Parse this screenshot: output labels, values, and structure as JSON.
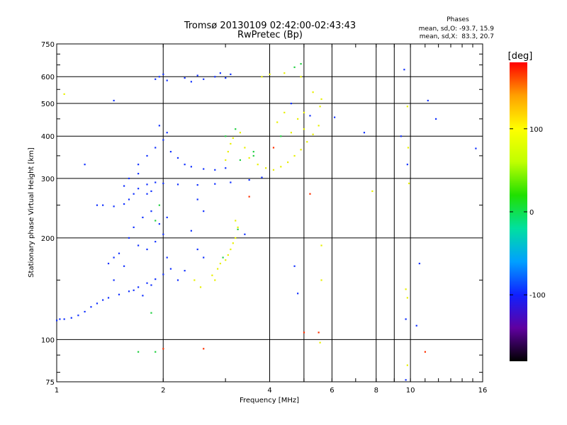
{
  "chart_data": {
    "type": "scatter",
    "title": "Tromsø 20130109 02:42:00-02:43:43",
    "subtitle": "RwPretec (Bp)",
    "xlabel": "Frequency [MHz]",
    "ylabel": "Stationary phase Virtual Height [km]",
    "x_scale": "log",
    "y_scale": "log",
    "xlim": [
      1,
      16
    ],
    "ylim": [
      75,
      750
    ],
    "x_ticks": [
      1,
      2,
      4,
      6,
      8,
      10,
      16
    ],
    "y_ticks": [
      75,
      100,
      200,
      300,
      400,
      500,
      600,
      750
    ],
    "x_grid": [
      2,
      4,
      5,
      6,
      8,
      9,
      10
    ],
    "y_grid": [
      100,
      200,
      300,
      400,
      500,
      600
    ],
    "grid": true,
    "phases": {
      "title": "Phases",
      "line_o": "mean, sd,O: -93.7, 15.9",
      "line_x": "mean, sd,X:  83.3, 20.7"
    },
    "colorbar": {
      "label": "[deg]",
      "range": [
        -180,
        180
      ],
      "ticks": [
        100,
        0,
        -100
      ],
      "palette": [
        "#000000",
        "#6000a0",
        "#1020ff",
        "#00a0ff",
        "#00e0a0",
        "#20e000",
        "#c0ff00",
        "#ffff00",
        "#ffa000",
        "#ff0000"
      ]
    },
    "series": [
      {
        "description": "O-mode echoes (blue, ~ -100 deg)",
        "color": "#1030ff",
        "points": [
          [
            1.0,
            114
          ],
          [
            1.02,
            115
          ],
          [
            1.05,
            115
          ],
          [
            1.1,
            116
          ],
          [
            1.15,
            118
          ],
          [
            1.2,
            121
          ],
          [
            1.25,
            125
          ],
          [
            1.3,
            128
          ],
          [
            1.35,
            131
          ],
          [
            1.4,
            133
          ],
          [
            1.5,
            136
          ],
          [
            1.6,
            139
          ],
          [
            1.7,
            143
          ],
          [
            1.8,
            147
          ],
          [
            1.9,
            151
          ],
          [
            2.0,
            156
          ],
          [
            2.1,
            162
          ],
          [
            1.4,
            168
          ],
          [
            1.45,
            175
          ],
          [
            1.3,
            250
          ],
          [
            1.35,
            250
          ],
          [
            1.45,
            248
          ],
          [
            1.55,
            252
          ],
          [
            1.6,
            260
          ],
          [
            1.65,
            270
          ],
          [
            1.7,
            280
          ],
          [
            1.8,
            288
          ],
          [
            1.9,
            292
          ],
          [
            2.0,
            290
          ],
          [
            2.2,
            288
          ],
          [
            2.5,
            287
          ],
          [
            2.8,
            289
          ],
          [
            3.1,
            292
          ],
          [
            3.5,
            297
          ],
          [
            3.8,
            302
          ],
          [
            1.6,
            200
          ],
          [
            1.7,
            190
          ],
          [
            1.8,
            185
          ],
          [
            1.9,
            195
          ],
          [
            2.0,
            205
          ],
          [
            2.05,
            230
          ],
          [
            1.75,
            230
          ],
          [
            1.85,
            240
          ],
          [
            1.95,
            220
          ],
          [
            1.65,
            215
          ],
          [
            1.7,
            330
          ],
          [
            1.8,
            350
          ],
          [
            1.9,
            370
          ],
          [
            2.0,
            390
          ],
          [
            2.05,
            410
          ],
          [
            1.95,
            430
          ],
          [
            2.1,
            360
          ],
          [
            2.2,
            345
          ],
          [
            2.3,
            330
          ],
          [
            2.4,
            325
          ],
          [
            2.6,
            320
          ],
          [
            2.8,
            318
          ],
          [
            3.0,
            322
          ],
          [
            1.9,
            590
          ],
          [
            1.95,
            600
          ],
          [
            2.0,
            610
          ],
          [
            2.05,
            585
          ],
          [
            2.3,
            595
          ],
          [
            2.4,
            580
          ],
          [
            2.5,
            605
          ],
          [
            2.6,
            590
          ],
          [
            2.8,
            600
          ],
          [
            2.9,
            615
          ],
          [
            3.0,
            595
          ],
          [
            3.1,
            610
          ],
          [
            1.8,
            270
          ],
          [
            1.85,
            275
          ],
          [
            1.6,
            300
          ],
          [
            1.7,
            310
          ],
          [
            1.55,
            285
          ],
          [
            2.5,
            260
          ],
          [
            2.6,
            240
          ],
          [
            2.4,
            210
          ],
          [
            2.5,
            185
          ],
          [
            2.6,
            175
          ],
          [
            2.3,
            160
          ],
          [
            2.2,
            150
          ],
          [
            1.5,
            180
          ],
          [
            1.55,
            165
          ],
          [
            1.45,
            150
          ],
          [
            1.65,
            140
          ],
          [
            1.75,
            135
          ],
          [
            1.85,
            145
          ],
          [
            2.05,
            175
          ],
          [
            1.2,
            330
          ],
          [
            1.45,
            510
          ],
          [
            3.4,
            205
          ],
          [
            4.6,
            500
          ],
          [
            5.2,
            460
          ],
          [
            6.1,
            455
          ],
          [
            7.4,
            410
          ],
          [
            11.2,
            510
          ],
          [
            11.8,
            450
          ],
          [
            9.6,
            630
          ],
          [
            9.4,
            400
          ],
          [
            9.8,
            330
          ],
          [
            9.7,
            115
          ],
          [
            10.6,
            168
          ],
          [
            10.4,
            110
          ],
          [
            4.7,
            165
          ],
          [
            4.8,
            137
          ],
          [
            15.3,
            368
          ],
          [
            9.7,
            76
          ]
        ]
      },
      {
        "description": "X-mode echoes (yellow, ~ +80 deg)",
        "color": "#e8f000",
        "points": [
          [
            3.0,
            340
          ],
          [
            3.05,
            360
          ],
          [
            3.1,
            380
          ],
          [
            3.15,
            395
          ],
          [
            3.3,
            410
          ],
          [
            3.4,
            370
          ],
          [
            3.5,
            345
          ],
          [
            3.7,
            330
          ],
          [
            3.9,
            322
          ],
          [
            4.1,
            318
          ],
          [
            4.3,
            325
          ],
          [
            4.5,
            335
          ],
          [
            4.7,
            350
          ],
          [
            4.9,
            365
          ],
          [
            5.1,
            385
          ],
          [
            5.3,
            405
          ],
          [
            5.5,
            430
          ],
          [
            4.8,
            450
          ],
          [
            4.4,
            470
          ],
          [
            4.2,
            440
          ],
          [
            4.6,
            410
          ],
          [
            5.0,
            420
          ],
          [
            2.75,
            155
          ],
          [
            2.8,
            150
          ],
          [
            2.85,
            162
          ],
          [
            2.9,
            168
          ],
          [
            3.0,
            172
          ],
          [
            3.05,
            178
          ],
          [
            3.1,
            185
          ],
          [
            3.15,
            193
          ],
          [
            3.2,
            200
          ],
          [
            3.25,
            215
          ],
          [
            3.2,
            225
          ],
          [
            3.8,
            600
          ],
          [
            4.0,
            610
          ],
          [
            4.4,
            615
          ],
          [
            4.9,
            600
          ],
          [
            5.3,
            540
          ],
          [
            5.6,
            515
          ],
          [
            5.55,
            490
          ],
          [
            5.0,
            470
          ],
          [
            2.45,
            150
          ],
          [
            2.55,
            143
          ],
          [
            9.8,
            490
          ],
          [
            9.85,
            370
          ],
          [
            9.9,
            290
          ],
          [
            7.8,
            275
          ],
          [
            9.7,
            141
          ],
          [
            9.8,
            133
          ],
          [
            5.6,
            150
          ],
          [
            5.6,
            190
          ],
          [
            5.55,
            98
          ],
          [
            9.8,
            84
          ],
          [
            1.05,
            533
          ]
        ]
      },
      {
        "description": "green / cyan transitional echoes",
        "color": "#20d040",
        "points": [
          [
            3.0,
            400
          ],
          [
            3.2,
            420
          ],
          [
            3.3,
            340
          ],
          [
            3.6,
            360
          ],
          [
            4.9,
            655
          ],
          [
            4.7,
            640
          ],
          [
            1.85,
            120
          ],
          [
            1.7,
            92
          ],
          [
            1.9,
            92
          ],
          [
            2.95,
            175
          ],
          [
            3.25,
            212
          ],
          [
            3.6,
            350
          ],
          [
            4.3,
            400
          ],
          [
            1.9,
            225
          ],
          [
            1.95,
            250
          ]
        ]
      },
      {
        "description": "red / orange echoes",
        "color": "#ff3000",
        "points": [
          [
            5.2,
            270
          ],
          [
            5.0,
            105
          ],
          [
            5.5,
            105
          ],
          [
            3.5,
            265
          ],
          [
            4.1,
            370
          ],
          [
            2.0,
            94
          ],
          [
            11.0,
            92
          ],
          [
            2.6,
            94
          ]
        ]
      }
    ]
  }
}
